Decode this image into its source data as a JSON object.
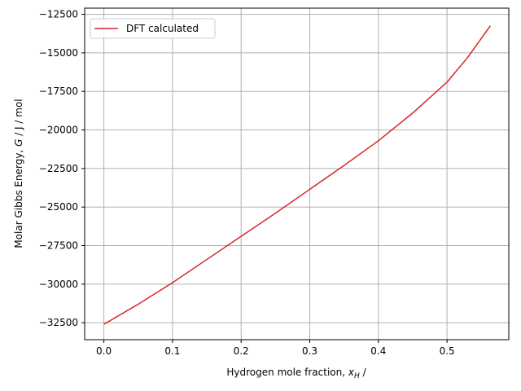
{
  "chart_data": {
    "type": "line",
    "title": "",
    "xlabel": {
      "prefix": "Hydrogen mole fraction, ",
      "symbol": "x",
      "subscript": "H",
      "suffix": " /"
    },
    "ylabel": {
      "prefix": "Molar Gibbs Energy, ",
      "symbol": "G",
      "suffix": " / J / mol"
    },
    "xlim": [
      -0.028,
      0.59
    ],
    "ylim": [
      -33600,
      -12100
    ],
    "xticks": [
      0.0,
      0.1,
      0.2,
      0.3,
      0.4,
      0.5
    ],
    "xtick_labels": [
      "0.0",
      "0.1",
      "0.2",
      "0.3",
      "0.4",
      "0.5"
    ],
    "yticks": [
      -32500,
      -30000,
      -27500,
      -25000,
      -22500,
      -20000,
      -17500,
      -15000,
      -12500
    ],
    "ytick_labels": [
      "−32500",
      "−30000",
      "−27500",
      "−25000",
      "−22500",
      "−20000",
      "−17500",
      "−15000",
      "−12500"
    ],
    "grid": true,
    "legend_position": "top-left",
    "series": [
      {
        "name": "DFT calculated",
        "color": "#d62728",
        "x": [
          0.0,
          0.05,
          0.1,
          0.15,
          0.2,
          0.25,
          0.3,
          0.35,
          0.4,
          0.45,
          0.5,
          0.53,
          0.563
        ],
        "y": [
          -32600,
          -31300,
          -29900,
          -28400,
          -26900,
          -25400,
          -23850,
          -22300,
          -20700,
          -18900,
          -16900,
          -15300,
          -13250
        ]
      }
    ]
  }
}
